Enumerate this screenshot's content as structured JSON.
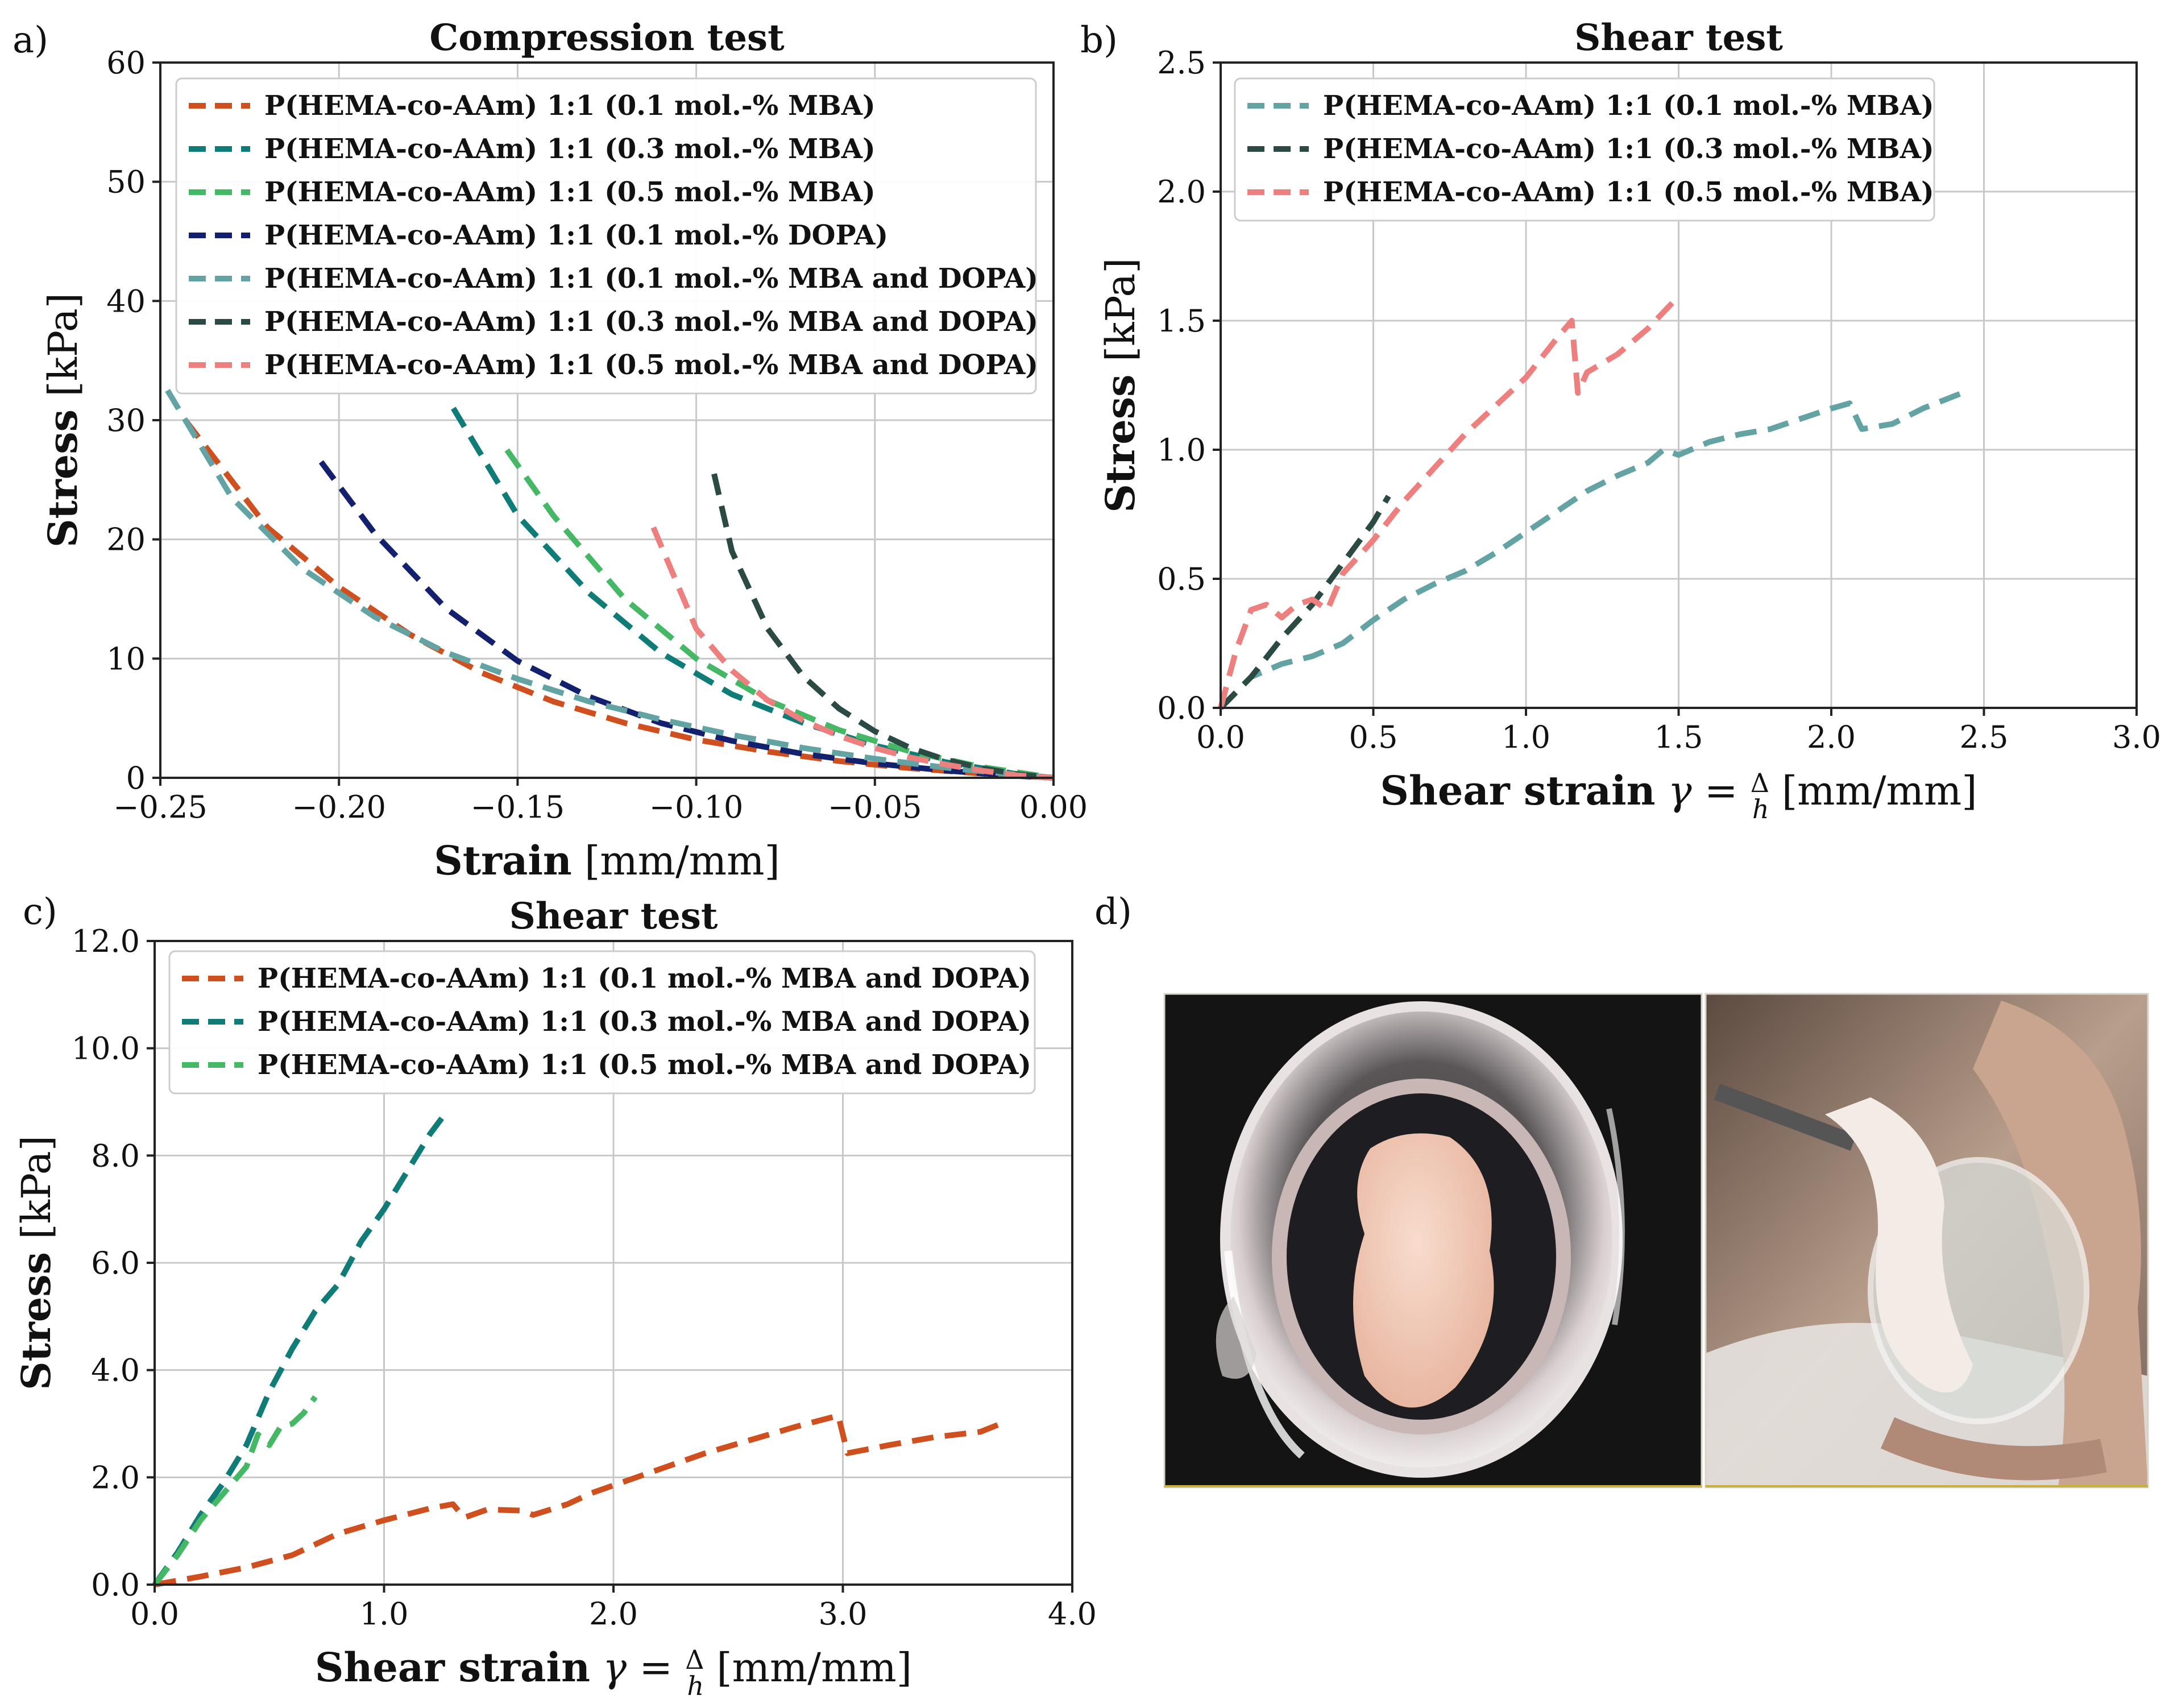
{
  "panel_labels": [
    "a)",
    "b)",
    "c)",
    "d)"
  ],
  "chart_data": [
    {
      "id": "a",
      "type": "line",
      "title": "Compression test",
      "xlabel_bold": "Strain",
      "xlabel_rest": "[mm/mm]",
      "ylabel_bold": "Stress",
      "ylabel_rest": "[kPa]",
      "xlim": [
        -0.25,
        0
      ],
      "ylim": [
        0,
        60
      ],
      "xticks": [
        -0.25,
        -0.2,
        -0.15,
        -0.1,
        -0.05,
        0
      ],
      "xtick_labels": [
        "−0.25",
        "−0.20",
        "−0.15",
        "−0.10",
        "−0.05",
        "0.00"
      ],
      "yticks": [
        0,
        10,
        20,
        30,
        40,
        50,
        60
      ],
      "ytick_labels": [
        "0",
        "10",
        "20",
        "30",
        "40",
        "50",
        "60"
      ],
      "grid": true,
      "legend": "top-left",
      "series": [
        {
          "name": "P(HEMA-co-AAm) 1:1 (0.1 mol.-% MBA)",
          "color": "#d04f1e",
          "x": [
            -0.243,
            -0.22,
            -0.2,
            -0.18,
            -0.16,
            -0.14,
            -0.12,
            -0.1,
            -0.08,
            -0.06,
            -0.04,
            -0.02,
            0
          ],
          "y": [
            30,
            21,
            16,
            12,
            8.8,
            6.4,
            4.6,
            3.2,
            2.2,
            1.4,
            0.8,
            0.35,
            0
          ]
        },
        {
          "name": "P(HEMA-co-AAm) 1:1 (0.3 mol.-% MBA)",
          "color": "#0f7c78",
          "x": [
            -0.168,
            -0.15,
            -0.13,
            -0.11,
            -0.09,
            -0.07,
            -0.05,
            -0.03,
            -0.01,
            0
          ],
          "y": [
            31,
            22,
            15.5,
            10.5,
            7,
            4.6,
            2.7,
            1.3,
            0.3,
            0
          ]
        },
        {
          "name": "P(HEMA-co-AAm) 1:1 (0.5 mol.-% MBA)",
          "color": "#45b866",
          "x": [
            -0.153,
            -0.14,
            -0.12,
            -0.1,
            -0.08,
            -0.06,
            -0.04,
            -0.02,
            0
          ],
          "y": [
            27.5,
            22,
            15,
            10,
            6.5,
            4,
            2.2,
            0.9,
            0
          ]
        },
        {
          "name": "P(HEMA-co-AAm) 1:1 (0.1 mol.-% DOPA)",
          "color": "#13206e",
          "x": [
            -0.205,
            -0.19,
            -0.17,
            -0.15,
            -0.13,
            -0.11,
            -0.09,
            -0.07,
            -0.05,
            -0.03,
            -0.01,
            0
          ],
          "y": [
            26.5,
            20.5,
            14.2,
            9.8,
            6.8,
            4.6,
            3.1,
            2,
            1.2,
            0.6,
            0.15,
            0
          ]
        },
        {
          "name": "P(HEMA-co-AAm) 1:1 (0.1 mol.-% MBA and DOPA)",
          "color": "#63a3a3",
          "x": [
            -0.248,
            -0.23,
            -0.21,
            -0.19,
            -0.17,
            -0.15,
            -0.13,
            -0.11,
            -0.09,
            -0.07,
            -0.05,
            -0.03,
            -0.01,
            0
          ],
          "y": [
            32.5,
            23.5,
            17.5,
            13.5,
            10.5,
            8.3,
            6.4,
            4.9,
            3.6,
            2.5,
            1.6,
            0.85,
            0.25,
            0
          ]
        },
        {
          "name": "P(HEMA-co-AAm) 1:1 (0.3 mol.-% MBA and DOPA)",
          "color": "#2c4a44",
          "x": [
            -0.095,
            -0.09,
            -0.08,
            -0.07,
            -0.06,
            -0.05,
            -0.04,
            -0.03,
            -0.02,
            -0.01,
            0
          ],
          "y": [
            25.5,
            19,
            12.5,
            8.5,
            5.8,
            3.9,
            2.5,
            1.5,
            0.8,
            0.3,
            0
          ]
        },
        {
          "name": "P(HEMA-co-AAm) 1:1 (0.5 mol.-% MBA and DOPA)",
          "color": "#ee7f7f",
          "x": [
            -0.112,
            -0.1,
            -0.09,
            -0.08,
            -0.07,
            -0.06,
            -0.05,
            -0.04,
            -0.03,
            -0.02,
            -0.01,
            0
          ],
          "y": [
            21,
            12.5,
            9,
            6.5,
            4.8,
            3.5,
            2.5,
            1.7,
            1.1,
            0.6,
            0.2,
            0
          ]
        }
      ]
    },
    {
      "id": "b",
      "type": "line",
      "title": "Shear test",
      "xlabel_bold": "Shear strain",
      "xlabel_rest": "[mm/mm]",
      "ylabel_bold": "Stress",
      "ylabel_rest": "[kPa]",
      "xlim": [
        0,
        3
      ],
      "ylim": [
        0,
        2.5
      ],
      "xticks": [
        0,
        0.5,
        1,
        1.5,
        2,
        2.5,
        3
      ],
      "xtick_labels": [
        "0.0",
        "0.5",
        "1.0",
        "1.5",
        "2.0",
        "2.5",
        "3.0"
      ],
      "yticks": [
        0,
        0.5,
        1,
        1.5,
        2,
        2.5
      ],
      "ytick_labels": [
        "0.0",
        "0.5",
        "1.0",
        "1.5",
        "2.0",
        "2.5"
      ],
      "grid": true,
      "legend": "top-left",
      "series": [
        {
          "name": "P(HEMA-co-AAm) 1:1 (0.1 mol.-% MBA)",
          "color": "#63a3a3",
          "x": [
            0,
            0.1,
            0.2,
            0.3,
            0.4,
            0.5,
            0.6,
            0.7,
            0.8,
            0.9,
            1.0,
            1.1,
            1.2,
            1.3,
            1.4,
            1.45,
            1.5,
            1.6,
            1.7,
            1.8,
            1.9,
            2.0,
            2.06,
            2.1,
            2.2,
            2.3,
            2.45
          ],
          "y": [
            0,
            0.12,
            0.17,
            0.2,
            0.25,
            0.34,
            0.42,
            0.48,
            0.53,
            0.6,
            0.68,
            0.76,
            0.84,
            0.9,
            0.95,
            1.0,
            0.98,
            1.03,
            1.06,
            1.08,
            1.12,
            1.16,
            1.18,
            1.08,
            1.1,
            1.16,
            1.23
          ]
        },
        {
          "name": "P(HEMA-co-AAm) 1:1 (0.3 mol.-% MBA)",
          "color": "#2c4a44",
          "x": [
            0,
            0.1,
            0.2,
            0.3,
            0.4,
            0.5,
            0.55
          ],
          "y": [
            0,
            0.12,
            0.27,
            0.4,
            0.56,
            0.72,
            0.82
          ]
        },
        {
          "name": "P(HEMA-co-AAm) 1:1 (0.5 mol.-% MBA)",
          "color": "#ee7f7f",
          "x": [
            0,
            0.05,
            0.1,
            0.15,
            0.2,
            0.25,
            0.3,
            0.35,
            0.4,
            0.5,
            0.6,
            0.7,
            0.8,
            0.9,
            1.0,
            1.1,
            1.15,
            1.17,
            1.2,
            1.3,
            1.4,
            1.48
          ],
          "y": [
            0,
            0.22,
            0.38,
            0.4,
            0.35,
            0.4,
            0.42,
            0.38,
            0.52,
            0.65,
            0.8,
            0.93,
            1.06,
            1.17,
            1.28,
            1.43,
            1.5,
            1.22,
            1.3,
            1.37,
            1.47,
            1.57
          ]
        }
      ]
    },
    {
      "id": "c",
      "type": "line",
      "title": "Shear test",
      "xlabel_bold": "Shear strain",
      "xlabel_rest": "[mm/mm]",
      "ylabel_bold": "Stress",
      "ylabel_rest": "[kPa]",
      "xlim": [
        0,
        4
      ],
      "ylim": [
        0,
        12
      ],
      "xticks": [
        0,
        1,
        2,
        3,
        4
      ],
      "xtick_labels": [
        "0.0",
        "1.0",
        "2.0",
        "3.0",
        "4.0"
      ],
      "yticks": [
        0,
        2,
        4,
        6,
        8,
        10,
        12
      ],
      "ytick_labels": [
        "0.0",
        "2.0",
        "4.0",
        "6.0",
        "8.0",
        "10.0",
        "12.0"
      ],
      "grid": true,
      "legend": "top-left",
      "series": [
        {
          "name": "P(HEMA-co-AAm) 1:1 (0.1 mol.-% MBA and DOPA)",
          "color": "#d04f1e",
          "x": [
            0,
            0.2,
            0.4,
            0.6,
            0.8,
            1.0,
            1.2,
            1.3,
            1.35,
            1.45,
            1.6,
            1.65,
            1.8,
            1.9,
            2.0,
            2.2,
            2.4,
            2.6,
            2.8,
            2.98,
            3.02,
            3.2,
            3.4,
            3.6,
            3.7
          ],
          "y": [
            0,
            0.15,
            0.32,
            0.55,
            0.95,
            1.2,
            1.42,
            1.5,
            1.25,
            1.4,
            1.38,
            1.3,
            1.5,
            1.7,
            1.85,
            2.15,
            2.45,
            2.7,
            2.95,
            3.15,
            2.45,
            2.6,
            2.75,
            2.85,
            3.02
          ]
        },
        {
          "name": "P(HEMA-co-AAm) 1:1 (0.3 mol.-% MBA and DOPA)",
          "color": "#0f7c78",
          "x": [
            0,
            0.1,
            0.2,
            0.3,
            0.4,
            0.5,
            0.6,
            0.7,
            0.8,
            0.9,
            1.0,
            1.1,
            1.2,
            1.27
          ],
          "y": [
            0,
            0.6,
            1.3,
            1.9,
            2.6,
            3.6,
            4.4,
            5.1,
            5.6,
            6.4,
            7.0,
            7.7,
            8.4,
            8.8
          ]
        },
        {
          "name": "P(HEMA-co-AAm) 1:1 (0.5 mol.-% MBA and DOPA)",
          "color": "#45b866",
          "x": [
            0,
            0.1,
            0.2,
            0.3,
            0.4,
            0.45,
            0.5,
            0.55,
            0.6,
            0.65,
            0.7
          ],
          "y": [
            0,
            0.55,
            1.2,
            1.7,
            2.2,
            2.8,
            2.6,
            2.95,
            3.0,
            3.2,
            3.5
          ]
        }
      ]
    }
  ]
}
